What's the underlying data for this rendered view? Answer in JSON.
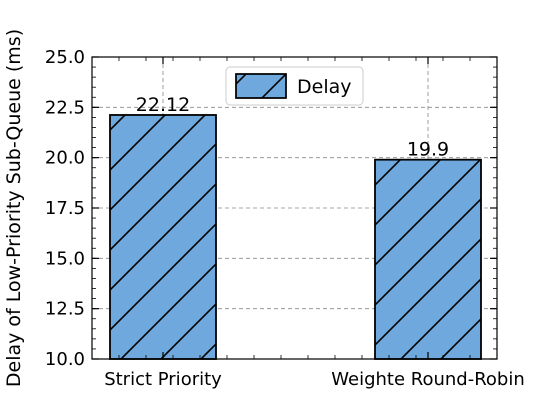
{
  "chart_data": {
    "type": "bar",
    "categories": [
      "Strict Priority",
      "Weighte Round-Robin"
    ],
    "series": [
      {
        "name": "Delay",
        "values": [
          22.12,
          19.9
        ],
        "data_labels": [
          "22.12",
          "19.9"
        ]
      }
    ],
    "xlabel": "",
    "ylabel": "Delay of Low-Priority Sub-Queue (ms)",
    "ylim": [
      10.0,
      25.0
    ],
    "yticks": [
      "10.0",
      "12.5",
      "15.0",
      "17.5",
      "20.0",
      "22.5",
      "25.0"
    ],
    "grid": true,
    "legend_position": "top-center",
    "bar_color": "#6fa8dc",
    "bar_hatch": "/"
  }
}
